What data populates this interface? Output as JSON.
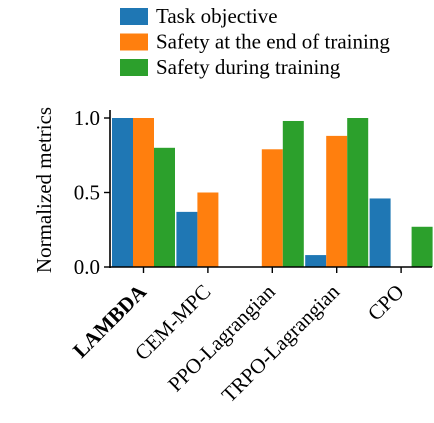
{
  "chart_data": {
    "type": "bar",
    "ylabel": "Normalized metrics",
    "xlabel": "",
    "ylim": [
      0,
      1.0
    ],
    "yticks": [
      0.0,
      0.5,
      1.0
    ],
    "ytick_labels": [
      "0.0",
      "0.5",
      "1.0"
    ],
    "categories": [
      "LAMBDA",
      "CEM-MPC",
      "PPO-Lagrangian",
      "TRPO-Lagrangian",
      "CPO"
    ],
    "bold_categories": [
      "LAMBDA"
    ],
    "series": [
      {
        "name": "Task objective",
        "color": "#1f77b4",
        "values": [
          1.0,
          0.37,
          0.0,
          0.08,
          0.46
        ]
      },
      {
        "name": "Safety at the end of training",
        "color": "#ff7f0e",
        "values": [
          1.0,
          0.5,
          0.79,
          0.88,
          0.0
        ]
      },
      {
        "name": "Safety during training",
        "color": "#2ca02c",
        "values": [
          0.8,
          0.0,
          0.98,
          1.0,
          0.27
        ]
      }
    ],
    "legend_position": "top",
    "grid": false
  }
}
